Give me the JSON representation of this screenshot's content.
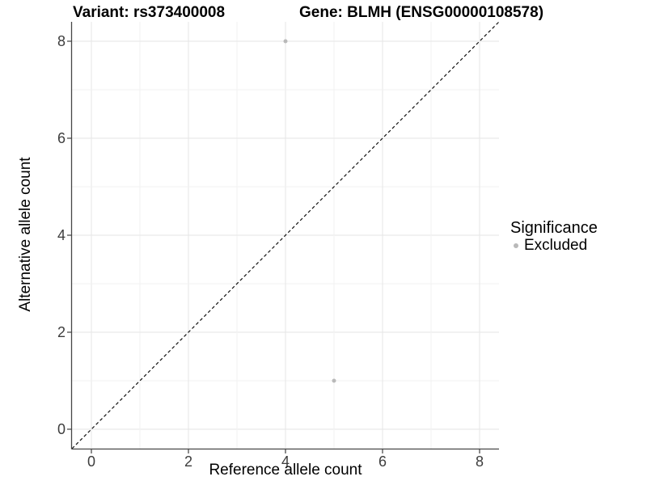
{
  "titles": {
    "left": "Variant: rs373400008",
    "right": "Gene: BLMH (ENSG00000108578)"
  },
  "axes": {
    "x_label": "Reference allele count",
    "y_label": "Alternative allele count",
    "x_ticks": [
      "0",
      "2",
      "4",
      "6",
      "8"
    ],
    "y_ticks": [
      "0",
      "2",
      "4",
      "6",
      "8"
    ]
  },
  "legend": {
    "title": "Significance",
    "items": [
      {
        "label": "Excluded",
        "color": "#b9b9b9"
      }
    ]
  },
  "colors": {
    "background": "#ffffff",
    "grid_major": "#e6e6e6",
    "grid_minor": "#f2f2f2",
    "axis_line": "#464646",
    "tick_mark": "#404040",
    "tick_label": "#3d3d3d",
    "point": "#b9b9b9",
    "reference_line": "#111111"
  },
  "chart_data": {
    "type": "scatter",
    "title": "Variant: rs373400008 | Gene: BLMH (ENSG00000108578)",
    "xlabel": "Reference allele count",
    "ylabel": "Alternative allele count",
    "xlim": [
      -0.4,
      8.4
    ],
    "ylim": [
      -0.4,
      8.4
    ],
    "x_major_ticks": [
      0,
      2,
      4,
      6,
      8
    ],
    "y_major_ticks": [
      0,
      2,
      4,
      6,
      8
    ],
    "grid": "major at even units, minor at odd units, light grey, background white",
    "legend_position": "right",
    "legend_title": "Significance",
    "series": [
      {
        "name": "Excluded",
        "color": "#b9b9b9",
        "points": [
          {
            "x": 4,
            "y": 8
          },
          {
            "x": 5,
            "y": 1
          }
        ]
      }
    ],
    "reference_line": {
      "type": "identity y = x",
      "style": "dashed",
      "color": "#111111"
    }
  }
}
